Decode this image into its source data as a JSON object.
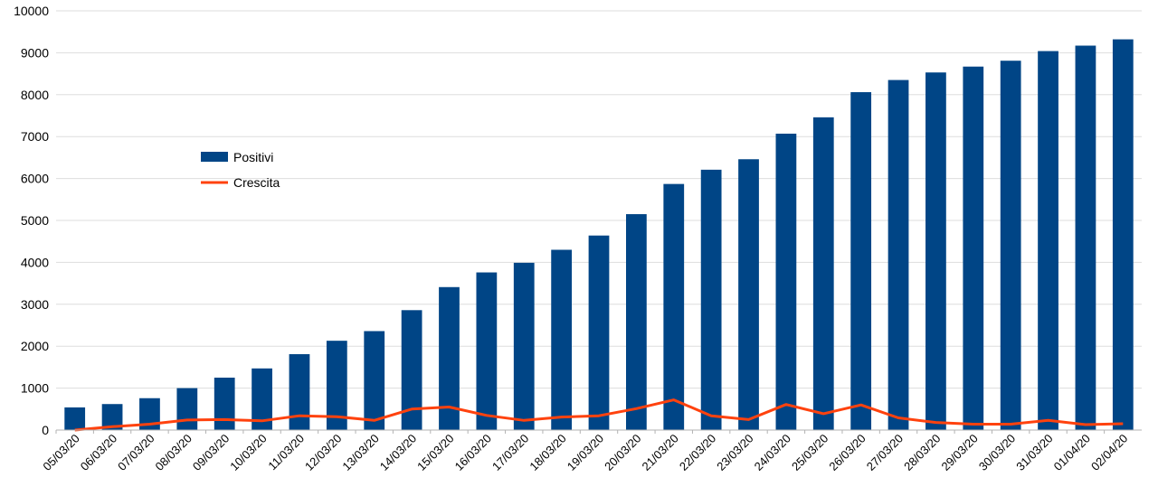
{
  "chart_data": {
    "type": "bar",
    "categories": [
      "05/03/20",
      "06/03/20",
      "07/03/20",
      "08/03/20",
      "09/03/20",
      "10/03/20",
      "11/03/20",
      "12/03/20",
      "13/03/20",
      "14/03/20",
      "15/03/20",
      "16/03/20",
      "17/03/20",
      "18/03/20",
      "19/03/20",
      "20/03/20",
      "21/03/20",
      "22/03/20",
      "23/03/20",
      "24/03/20",
      "25/03/20",
      "26/03/20",
      "27/03/20",
      "28/03/20",
      "29/03/20",
      "30/03/20",
      "31/03/20",
      "01/04/20",
      "02/04/20"
    ],
    "series": [
      {
        "name": "Positivi",
        "type": "bar",
        "color": "#004586",
        "values": [
          540,
          620,
          760,
          1000,
          1250,
          1470,
          1810,
          2130,
          2360,
          2860,
          3410,
          3760,
          3990,
          4300,
          4640,
          5150,
          5870,
          6210,
          6460,
          7070,
          7460,
          8060,
          8350,
          8530,
          8670,
          8810,
          9040,
          9170,
          9320
        ]
      },
      {
        "name": "Crescita",
        "type": "line",
        "color": "#ff420e",
        "values": [
          0,
          80,
          140,
          240,
          250,
          220,
          340,
          320,
          230,
          500,
          550,
          350,
          230,
          310,
          340,
          510,
          720,
          340,
          250,
          610,
          390,
          600,
          290,
          180,
          140,
          140,
          230,
          130,
          150
        ]
      }
    ],
    "ylim": [
      0,
      10000
    ],
    "yticks": [
      "0",
      "1000",
      "2000",
      "3000",
      "4000",
      "5000",
      "6000",
      "7000",
      "8000",
      "9000",
      "10000"
    ],
    "grid": true,
    "legend_position": "left-middle",
    "title": "",
    "xlabel": "",
    "ylabel": ""
  }
}
